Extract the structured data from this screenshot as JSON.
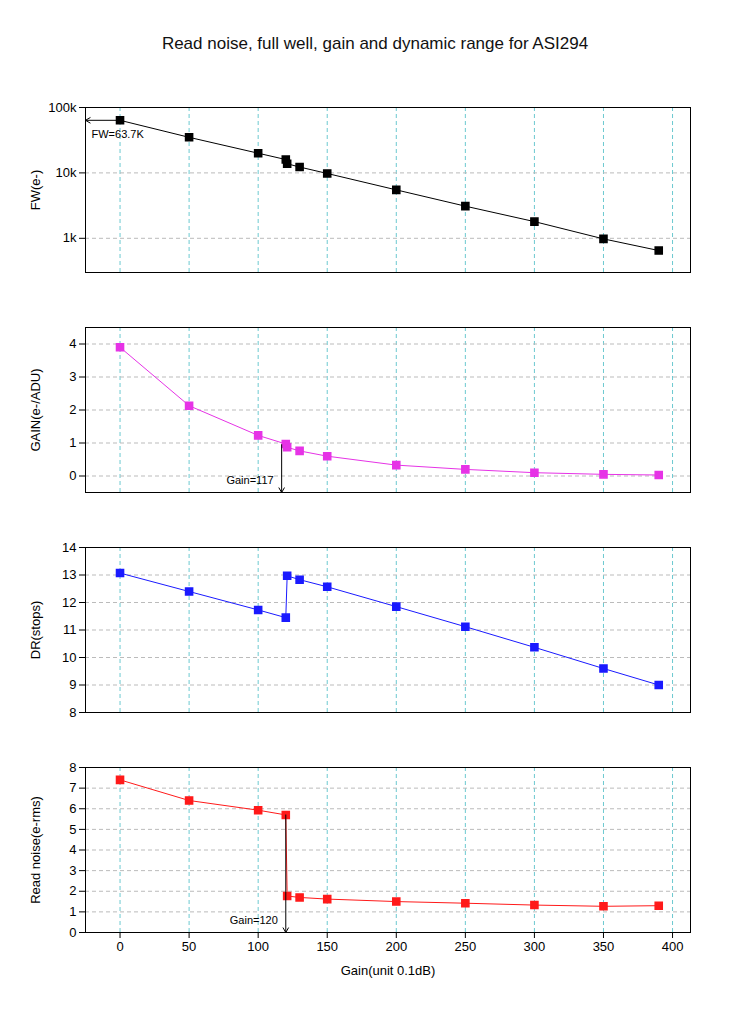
{
  "chart_data": [
    {
      "type": "line",
      "title": "Read noise, full well, gain and dynamic range for ASI294",
      "ylabel": "FW(e-)",
      "log": "y",
      "grid": true,
      "tick_labels": "y",
      "marker": "square",
      "color": "#000000",
      "x": [
        0,
        50,
        100,
        120,
        121,
        130,
        150,
        200,
        250,
        300,
        350,
        390
      ],
      "values": [
        63700,
        35000,
        20000,
        16000,
        13800,
        12300,
        9800,
        5500,
        3100,
        1800,
        980,
        650
      ],
      "xlim": [
        -25,
        413
      ],
      "xticks": [
        0,
        50,
        100,
        150,
        200,
        250,
        300,
        350,
        400
      ],
      "ylim": [
        300,
        100000
      ],
      "yticks": [
        {
          "value": 1000,
          "label": "1k"
        },
        {
          "value": 10000,
          "label": "10k"
        },
        {
          "value": 100000,
          "label": "100k"
        }
      ],
      "annotations": [
        {
          "text": "FW=63.7K",
          "x": 0,
          "y": 63700
        }
      ]
    },
    {
      "type": "line",
      "ylabel": "GAIN(e-/ADU)",
      "grid": true,
      "tick_labels": "y",
      "marker": "square",
      "color": "#e633e6",
      "x": [
        0,
        50,
        100,
        120,
        121,
        130,
        150,
        200,
        250,
        300,
        350,
        390
      ],
      "values": [
        3.9,
        2.13,
        1.23,
        0.97,
        0.87,
        0.76,
        0.6,
        0.33,
        0.2,
        0.1,
        0.05,
        0.03
      ],
      "xlim": [
        -25,
        413
      ],
      "xticks": [
        0,
        50,
        100,
        150,
        200,
        250,
        300,
        350,
        400
      ],
      "ylim": [
        -0.5,
        4.5
      ],
      "yticks": [
        0,
        1,
        2,
        3,
        4
      ],
      "annotations": [
        {
          "text": "Gain=117",
          "x": 117,
          "y": 0.95
        }
      ]
    },
    {
      "type": "line",
      "ylabel": "DR(stops)",
      "grid": true,
      "tick_labels": "y",
      "marker": "square",
      "color": "#1a1aff",
      "x": [
        0,
        50,
        100,
        120,
        121,
        130,
        150,
        200,
        250,
        300,
        350,
        390
      ],
      "values": [
        13.07,
        12.4,
        11.73,
        11.45,
        12.97,
        12.83,
        12.57,
        11.85,
        11.12,
        10.37,
        9.6,
        9.0
      ],
      "xlim": [
        -25,
        413
      ],
      "xticks": [
        0,
        50,
        100,
        150,
        200,
        250,
        300,
        350,
        400
      ],
      "ylim": [
        8,
        14
      ],
      "yticks": [
        8,
        9,
        10,
        11,
        12,
        13,
        14
      ]
    },
    {
      "type": "line",
      "ylabel": "Read noise(e-rms)",
      "xlabel": "Gain(unit 0.1dB)",
      "grid": true,
      "marker": "square",
      "color": "#ff1a1a",
      "x": [
        0,
        50,
        100,
        120,
        121,
        130,
        150,
        200,
        250,
        300,
        350,
        390
      ],
      "values": [
        7.4,
        6.4,
        5.93,
        5.7,
        1.77,
        1.7,
        1.62,
        1.5,
        1.42,
        1.33,
        1.27,
        1.3
      ],
      "xlim": [
        -25,
        413
      ],
      "xticks": [
        0,
        50,
        100,
        150,
        200,
        250,
        300,
        350,
        400
      ],
      "ylim": [
        0,
        8
      ],
      "yticks": [
        0,
        1,
        2,
        3,
        4,
        5,
        6,
        7,
        8
      ],
      "annotations": [
        {
          "text": "Gain=120",
          "x": 120,
          "y": 5.7
        }
      ]
    }
  ]
}
